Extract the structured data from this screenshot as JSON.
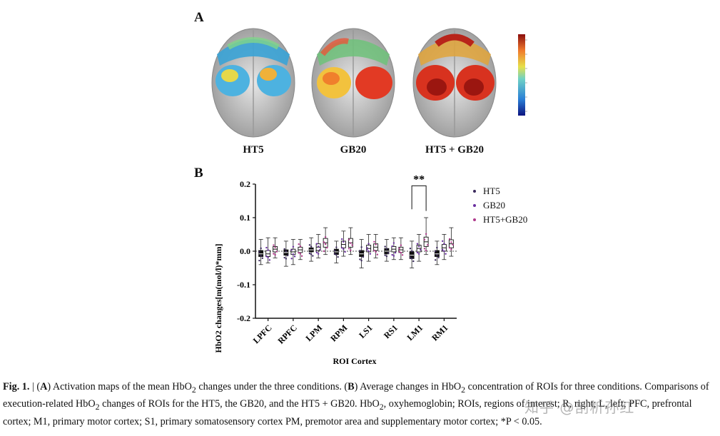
{
  "panel_a": {
    "letter": "A",
    "brains": [
      {
        "label": "HT5"
      },
      {
        "label": "GB20"
      },
      {
        "label": "HT5 + GB20"
      }
    ]
  },
  "panel_b": {
    "letter": "B"
  },
  "chart_data": {
    "type": "box",
    "title": "",
    "ylabel": "HbO2 changes[m(mol/l)*mm]",
    "xlabel": "ROI Cortex",
    "ylim": [
      -0.2,
      0.2
    ],
    "yticks": [
      "-0.2",
      "-0.1",
      "0.0",
      "0.1",
      "0.2"
    ],
    "categories": [
      "LPFC",
      "RPFC",
      "LPM",
      "RPM",
      "LS1",
      "RS1",
      "LM1",
      "RM1"
    ],
    "series": [
      {
        "name": "HT5",
        "color": "#3b2a5c",
        "median": [
          -0.008,
          -0.004,
          0.004,
          -0.002,
          -0.008,
          0.0,
          -0.012,
          -0.008
        ],
        "q1": [
          -0.016,
          -0.012,
          -0.002,
          -0.01,
          -0.016,
          -0.008,
          -0.022,
          -0.016
        ],
        "q3": [
          0.002,
          0.004,
          0.01,
          0.006,
          0.002,
          0.008,
          -0.002,
          0.002
        ],
        "whisker_low": [
          -0.04,
          -0.045,
          -0.03,
          -0.035,
          -0.05,
          -0.03,
          -0.05,
          -0.04
        ],
        "whisker_high": [
          0.035,
          0.03,
          0.04,
          0.03,
          0.035,
          0.035,
          0.03,
          0.03
        ]
      },
      {
        "name": "GB20",
        "color": "#6a2fa0",
        "median": [
          -0.008,
          -0.002,
          0.012,
          0.02,
          0.008,
          0.006,
          0.008,
          0.01
        ],
        "q1": [
          -0.016,
          -0.01,
          0.002,
          0.01,
          -0.002,
          -0.002,
          -0.002,
          0.0
        ],
        "q3": [
          0.002,
          0.006,
          0.022,
          0.03,
          0.018,
          0.014,
          0.018,
          0.02
        ],
        "whisker_low": [
          -0.035,
          -0.04,
          -0.02,
          -0.015,
          -0.03,
          -0.025,
          -0.03,
          -0.025
        ],
        "whisker_high": [
          0.04,
          0.035,
          0.05,
          0.06,
          0.05,
          0.04,
          0.05,
          0.05
        ]
      },
      {
        "name": "HT5+GB20",
        "color": "#b03a8c",
        "median": [
          0.006,
          0.004,
          0.025,
          0.025,
          0.012,
          0.004,
          0.028,
          0.022
        ],
        "q1": [
          -0.002,
          -0.004,
          0.012,
          0.012,
          0.002,
          -0.004,
          0.014,
          0.01
        ],
        "q3": [
          0.014,
          0.012,
          0.038,
          0.038,
          0.022,
          0.012,
          0.042,
          0.034
        ],
        "whisker_low": [
          -0.02,
          -0.025,
          -0.01,
          -0.01,
          -0.02,
          -0.025,
          -0.01,
          -0.015
        ],
        "whisker_high": [
          0.04,
          0.035,
          0.07,
          0.07,
          0.05,
          0.04,
          0.1,
          0.07
        ]
      }
    ],
    "annotation": {
      "text": "**",
      "category": "LM1"
    },
    "legend": [
      "HT5",
      "GB20",
      "HT5+GB20"
    ],
    "legend_position": "top-right"
  },
  "caption": {
    "fig_label": "Fig. 1.",
    "sep": " | (",
    "a_label": "A",
    "a_text": ") Activation maps of the mean HbO",
    "a_sub": "2",
    "a_text2": " changes under the three conditions. (",
    "b_label": "B",
    "b_text": ") Average changes in HbO",
    "b_sub": "2",
    "b_text2": " concentration of ROIs for three conditions. Comparisons of execution-related HbO",
    "c_sub": "2",
    "c_text": " changes of ROIs for the HT5, the GB20, and the HT5 + GB20. HbO",
    "d_sub": "2",
    "d_text": ", oxyhemoglobin; ROIs, regions of interest; R, right; L, left; PFC, prefrontal cortex; M1, primary motor cortex; S1, primary somatosensory cortex PM, premotor area and supplementary motor cortex; *P < 0.05."
  },
  "watermark": "知乎 @剖析孙红"
}
